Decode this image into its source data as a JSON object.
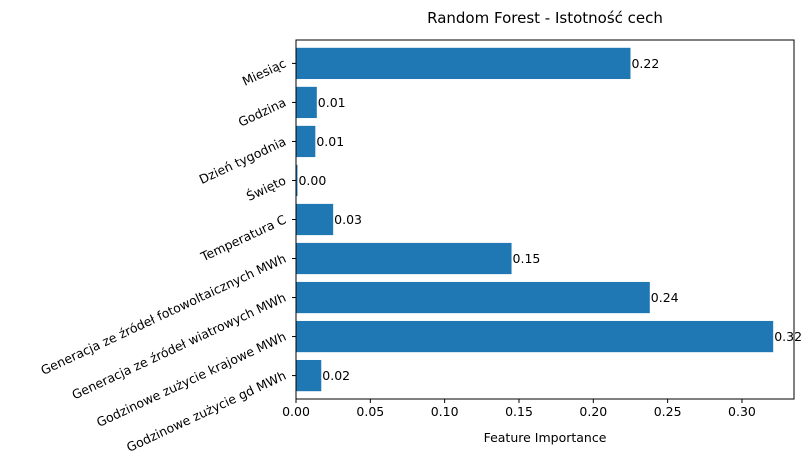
{
  "chart_data": {
    "type": "bar",
    "orientation": "horizontal",
    "title": "Random Forest - Istotność cech",
    "xlabel": "Feature Importance",
    "ylabel": "",
    "categories": [
      "Miesiąc",
      "Godzina",
      "Dzień tygodnia",
      "Święto",
      "Temperatura C",
      "Generacja ze źródeł fotowoltaicznych MWh",
      "Generacja ze źródeł wiatrowych MWh",
      "Godzinowe zużycie krajowe MWh",
      "Godzinowe zużycie gd MWh"
    ],
    "values": [
      0.225,
      0.014,
      0.013,
      0.001,
      0.025,
      0.145,
      0.238,
      0.321,
      0.017
    ],
    "data_labels": [
      "0.22",
      "0.01",
      "0.01",
      "0.00",
      "0.03",
      "0.15",
      "0.24",
      "0.32",
      "0.02"
    ],
    "xlim": [
      0,
      0.335
    ],
    "xticks": [
      0.0,
      0.05,
      0.1,
      0.15,
      0.2,
      0.25,
      0.3
    ],
    "xtick_labels": [
      "0.00",
      "0.05",
      "0.10",
      "0.15",
      "0.20",
      "0.25",
      "0.30"
    ],
    "bar_color": "#1f77b4",
    "grid": false,
    "legend": "none"
  }
}
